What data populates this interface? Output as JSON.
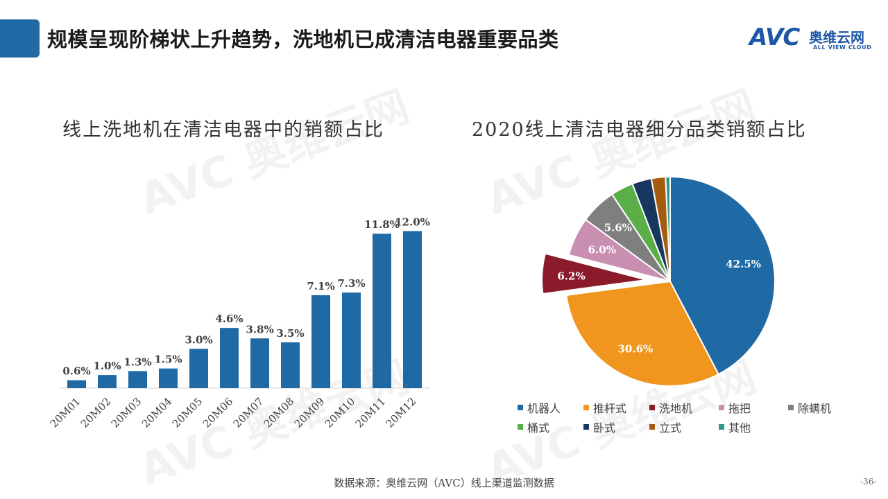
{
  "header": {
    "title": "规模呈现阶梯状上升趋势，洗地机已成清洁电器重要品类",
    "logo": {
      "mark": "AVC",
      "cn": "奥维云网",
      "en": "ALL VIEW CLOUD"
    }
  },
  "watermark": {
    "text": "AVC 奥维云网"
  },
  "colors": {
    "accent": "#1f6aa5",
    "bar": "#1f6aa5",
    "pie": [
      "#1f6aa5",
      "#f0961e",
      "#8b1a2b",
      "#c98fb0",
      "#7f7f7f",
      "#5aae48",
      "#17375e",
      "#a65c10",
      "#2a9a8a"
    ]
  },
  "chart_data": [
    {
      "type": "bar",
      "title": "线上洗地机在清洁电器中的销额占比",
      "categories": [
        "20M01",
        "20M02",
        "20M03",
        "20M04",
        "20M05",
        "20M06",
        "20M07",
        "20M08",
        "20M09",
        "20M10",
        "20M11",
        "20M12"
      ],
      "values": [
        0.6,
        1.0,
        1.3,
        1.5,
        3.0,
        4.6,
        3.8,
        3.5,
        7.1,
        7.3,
        11.8,
        12.0
      ],
      "value_labels": [
        "0.6%",
        "1.0%",
        "1.3%",
        "1.5%",
        "3.0%",
        "4.6%",
        "3.8%",
        "3.5%",
        "7.1%",
        "7.3%",
        "11.8%",
        "12.0%"
      ],
      "unit": "%",
      "grid": false,
      "ylim": [
        0,
        12.5
      ]
    },
    {
      "type": "pie",
      "title": "2020线上清洁电器细分品类销额占比",
      "slices": [
        {
          "label": "机器人",
          "value": 42.5,
          "value_label": "42.5%"
        },
        {
          "label": "推杆式",
          "value": 30.6,
          "value_label": "30.6%"
        },
        {
          "label": "洗地机",
          "value": 6.2,
          "value_label": "6.2%",
          "exploded": true
        },
        {
          "label": "拖把",
          "value": 6.0,
          "value_label": "6.0%"
        },
        {
          "label": "除螨机",
          "value": 5.6,
          "value_label": "5.6%"
        },
        {
          "label": "桶式",
          "value": 3.5,
          "value_label": ""
        },
        {
          "label": "卧式",
          "value": 3.0,
          "value_label": ""
        },
        {
          "label": "立式",
          "value": 2.2,
          "value_label": ""
        },
        {
          "label": "其他",
          "value": 0.7,
          "value_label": ""
        }
      ],
      "legend_position": "bottom"
    }
  ],
  "footer": {
    "source": "数据来源：奥维云网（AVC）线上渠道监测数据",
    "page_number": "-36-"
  }
}
